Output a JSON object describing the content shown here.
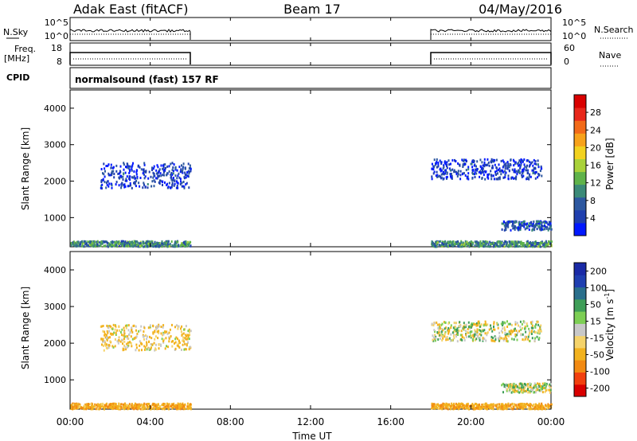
{
  "header": {
    "station": "Adak East (fitACF)",
    "beam": "Beam 17",
    "date": "04/May/2016"
  },
  "top_panels": {
    "nsky_label": "N.Sky",
    "nsearch_label": "N.Search",
    "nsky_ticks": [
      "10^5",
      "10^0"
    ],
    "nsearch_ticks": [
      "10^5",
      "10^0"
    ],
    "freq_label": "Freq.",
    "freq_unit": "[MHz]",
    "freq_ticks": [
      "18",
      "8"
    ],
    "nave_label": "Nave",
    "nave_ticks": [
      "60",
      "0"
    ],
    "cpid_label": "CPID",
    "cpid_text": "normalsound (fast) 157 RF"
  },
  "colors": {
    "power_scale": [
      "#0018ff",
      "#1f3fae",
      "#2d58a0",
      "#3b8a78",
      "#5fb34a",
      "#a9d23a",
      "#f2d21f",
      "#f7a21a",
      "#f26a18",
      "#e8271a",
      "#d90000"
    ],
    "velocity_scale": [
      "#d90000",
      "#f2400e",
      "#f28a12",
      "#f2b21e",
      "#f5d36a",
      "#c8c8c8",
      "#7dcf54",
      "#3f9e58",
      "#2a6f8c",
      "#1f3fb0",
      "#1a2aa6"
    ]
  },
  "chart_data": [
    {
      "type": "heatmap",
      "name": "power-panel",
      "ylabel": "Slant Range [km]",
      "yticks": [
        "1000",
        "2000",
        "3000",
        "4000"
      ],
      "ylim": [
        200,
        4500
      ],
      "xlim": [
        0,
        24
      ],
      "colorbar_label": "Power [dB]",
      "colorbar_ticks": [
        "4",
        "8",
        "12",
        "16",
        "20",
        "24",
        "28"
      ],
      "clim": [
        0,
        32
      ],
      "data_gaps_hours": [
        [
          6,
          18
        ]
      ],
      "echo_regions": [
        {
          "t_start": 1.5,
          "t_end": 6.0,
          "range_km": [
            1800,
            2500
          ],
          "value_db": 4
        },
        {
          "t_start": 18.0,
          "t_end": 23.5,
          "range_km": [
            2050,
            2600
          ],
          "value_db": 4
        },
        {
          "t_start": 21.5,
          "t_end": 24.0,
          "range_km": [
            650,
            900
          ],
          "value_db": 6
        },
        {
          "t_start": 0.0,
          "t_end": 6.0,
          "range_km": [
            200,
            350
          ],
          "value_db": 10
        },
        {
          "t_start": 18.0,
          "t_end": 24.0,
          "range_km": [
            200,
            350
          ],
          "value_db": 10
        }
      ]
    },
    {
      "type": "heatmap",
      "name": "velocity-panel",
      "ylabel": "Slant Range [km]",
      "yticks": [
        "1000",
        "2000",
        "3000",
        "4000"
      ],
      "ylim": [
        200,
        4500
      ],
      "xlim": [
        0,
        24
      ],
      "colorbar_label": "Velocity [m s^-1]",
      "colorbar_ticks": [
        "200",
        "100",
        "50",
        "15",
        "-15",
        "-50",
        "-100",
        "-200"
      ],
      "data_gaps_hours": [
        [
          6,
          18
        ]
      ],
      "echo_regions": [
        {
          "t_start": 1.5,
          "t_end": 6.0,
          "range_km": [
            1800,
            2500
          ],
          "value_ms": -20
        },
        {
          "t_start": 18.0,
          "t_end": 23.5,
          "range_km": [
            2050,
            2600
          ],
          "value_ms": 0
        },
        {
          "t_start": 21.5,
          "t_end": 24.0,
          "range_km": [
            650,
            900
          ],
          "value_ms": 0
        },
        {
          "t_start": 0.0,
          "t_end": 6.0,
          "range_km": [
            200,
            350
          ],
          "value_ms": -40
        },
        {
          "t_start": 18.0,
          "t_end": 24.0,
          "range_km": [
            200,
            350
          ],
          "value_ms": -40
        }
      ]
    }
  ],
  "xaxis": {
    "ticks": [
      "00:00",
      "04:00",
      "08:00",
      "12:00",
      "16:00",
      "20:00",
      "00:00"
    ],
    "label": "Time UT"
  }
}
